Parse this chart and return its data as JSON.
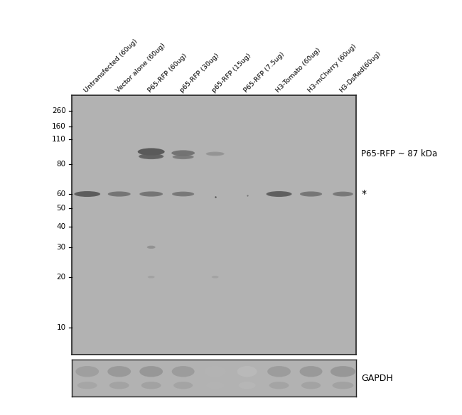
{
  "sample_labels": [
    "Untransfected (60ug)",
    "Vector alone (60ug)",
    "P65-RFP (60ug)",
    "p65-RFP (30ug)",
    "p65-RFP (15ug)",
    "P65-RFP (7.5ug)",
    "H3-Tomato (60ug)",
    "H3-mCherry (60ug)",
    "H3-DsRed(60ug)"
  ],
  "mw_markers": [
    260,
    160,
    110,
    80,
    60,
    50,
    40,
    30,
    20,
    10
  ],
  "blot_bg": "#b2b2b2",
  "gapdh_bg": "#b2b2b2",
  "band_dark": "#5a5a5a",
  "band_med": "#707070",
  "band_light": "#8a8a8a",
  "band_faint": "#9a9a9a",
  "right_label": "P65-RFP ~ 87 kDa",
  "star_label": "*",
  "gapdh_label": "GAPDH",
  "fig_bg": "#ffffff"
}
